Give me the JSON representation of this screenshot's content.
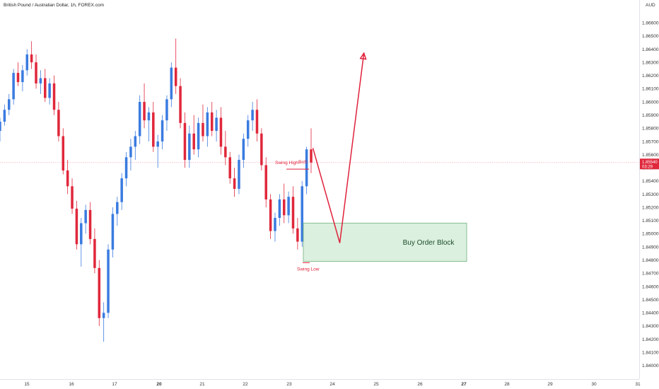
{
  "chart_data": {
    "type": "candlestick",
    "title": "British Pound / Australian Dollar, 1h, FOREX.com",
    "currency_label": "AUD",
    "y_ticks": [
      1.866,
      1.865,
      1.864,
      1.863,
      1.862,
      1.861,
      1.86,
      1.859,
      1.858,
      1.857,
      1.856,
      1.855,
      1.854,
      1.853,
      1.852,
      1.851,
      1.85,
      1.849,
      1.848,
      1.847,
      1.846,
      1.845,
      1.844,
      1.843,
      1.842,
      1.841,
      1.84
    ],
    "y_tick_labels": [
      "1.86600",
      "1.86500",
      "1.86400",
      "1.86300",
      "1.86200",
      "1.86100",
      "1.86000",
      "1.85900",
      "1.85800",
      "1.85700",
      "1.85600",
      "1.85500",
      "1.85400",
      "1.85300",
      "1.85200",
      "1.85100",
      "1.85000",
      "1.84900",
      "1.84800",
      "1.84700",
      "1.84600",
      "1.84500",
      "1.84400",
      "1.84300",
      "1.84200",
      "1.84100",
      "1.84000"
    ],
    "ylim": [
      1.8394,
      1.8673
    ],
    "x_ticks": [
      15,
      16,
      17,
      20,
      21,
      22,
      23,
      24,
      25,
      26,
      27,
      28,
      29,
      30,
      31
    ],
    "x_tick_labels": [
      "15",
      "16",
      "17",
      "20",
      "21",
      "22",
      "23",
      "24",
      "25",
      "26",
      "27",
      "28",
      "29",
      "30",
      "31"
    ],
    "bold_x_ticks": [
      "20",
      "27"
    ],
    "current_price": 1.8554,
    "current_price_label": "1.85540",
    "countdown_label": "03:29",
    "candles": [
      [
        1.8578,
        1.8588,
        1.857,
        1.8585
      ],
      [
        1.8585,
        1.8598,
        1.8582,
        1.8594
      ],
      [
        1.8594,
        1.8606,
        1.859,
        1.8602
      ],
      [
        1.8602,
        1.8625,
        1.8598,
        1.8622
      ],
      [
        1.8622,
        1.863,
        1.8612,
        1.8615
      ],
      [
        1.8615,
        1.8628,
        1.8608,
        1.8624
      ],
      [
        1.8624,
        1.864,
        1.862,
        1.8636
      ],
      [
        1.8636,
        1.8646,
        1.8625,
        1.863
      ],
      [
        1.863,
        1.8636,
        1.861,
        1.8614
      ],
      [
        1.8614,
        1.8624,
        1.8606,
        1.8618
      ],
      [
        1.8618,
        1.8625,
        1.86,
        1.8603
      ],
      [
        1.8603,
        1.8618,
        1.8598,
        1.8614
      ],
      [
        1.8614,
        1.862,
        1.859,
        1.8594
      ],
      [
        1.8594,
        1.86,
        1.857,
        1.8574
      ],
      [
        1.8574,
        1.858,
        1.8545,
        1.8548
      ],
      [
        1.8548,
        1.8556,
        1.853,
        1.8536
      ],
      [
        1.8536,
        1.8542,
        1.8515,
        1.8519
      ],
      [
        1.8519,
        1.8525,
        1.8488,
        1.8492
      ],
      [
        1.8492,
        1.8512,
        1.8475,
        1.8508
      ],
      [
        1.8508,
        1.8522,
        1.85,
        1.8518
      ],
      [
        1.8518,
        1.8524,
        1.8492,
        1.8496
      ],
      [
        1.8496,
        1.8504,
        1.847,
        1.8474
      ],
      [
        1.8474,
        1.848,
        1.843,
        1.8436
      ],
      [
        1.8436,
        1.8448,
        1.8418,
        1.844
      ],
      [
        1.844,
        1.8492,
        1.8436,
        1.8488
      ],
      [
        1.8488,
        1.852,
        1.8482,
        1.8515
      ],
      [
        1.8515,
        1.8528,
        1.8506,
        1.8524
      ],
      [
        1.8524,
        1.8546,
        1.8518,
        1.8542
      ],
      [
        1.8542,
        1.8562,
        1.8536,
        1.8558
      ],
      [
        1.8558,
        1.8572,
        1.8548,
        1.8566
      ],
      [
        1.8566,
        1.8578,
        1.8556,
        1.8574
      ],
      [
        1.8574,
        1.8605,
        1.8568,
        1.86
      ],
      [
        1.86,
        1.8614,
        1.858,
        1.8586
      ],
      [
        1.8586,
        1.8596,
        1.857,
        1.8592
      ],
      [
        1.8592,
        1.86,
        1.8562,
        1.8566
      ],
      [
        1.8566,
        1.8575,
        1.855,
        1.857
      ],
      [
        1.857,
        1.859,
        1.8564,
        1.8586
      ],
      [
        1.8586,
        1.8605,
        1.8578,
        1.8602
      ],
      [
        1.8602,
        1.863,
        1.8596,
        1.8626
      ],
      [
        1.8626,
        1.8648,
        1.8606,
        1.8612
      ],
      [
        1.8612,
        1.8618,
        1.858,
        1.8584
      ],
      [
        1.8584,
        1.8592,
        1.855,
        1.8556
      ],
      [
        1.8556,
        1.8582,
        1.855,
        1.8576
      ],
      [
        1.8576,
        1.859,
        1.856,
        1.8564
      ],
      [
        1.8564,
        1.8588,
        1.8558,
        1.8584
      ],
      [
        1.8584,
        1.8598,
        1.857,
        1.8574
      ],
      [
        1.8574,
        1.8596,
        1.8566,
        1.8592
      ],
      [
        1.8592,
        1.86,
        1.8574,
        1.8578
      ],
      [
        1.8578,
        1.8594,
        1.857,
        1.8588
      ],
      [
        1.8588,
        1.8596,
        1.856,
        1.8566
      ],
      [
        1.8566,
        1.8578,
        1.8552,
        1.8558
      ],
      [
        1.8558,
        1.8562,
        1.8538,
        1.8542
      ],
      [
        1.8542,
        1.855,
        1.8528,
        1.8534
      ],
      [
        1.8534,
        1.856,
        1.853,
        1.8556
      ],
      [
        1.8556,
        1.8576,
        1.855,
        1.8572
      ],
      [
        1.8572,
        1.859,
        1.8566,
        1.8586
      ],
      [
        1.8586,
        1.86,
        1.8578,
        1.8594
      ],
      [
        1.8594,
        1.8602,
        1.857,
        1.8576
      ],
      [
        1.8576,
        1.858,
        1.8548,
        1.8552
      ],
      [
        1.8552,
        1.8558,
        1.852,
        1.8526
      ],
      [
        1.8526,
        1.853,
        1.8496,
        1.8502
      ],
      [
        1.8502,
        1.8516,
        1.8494,
        1.8512
      ],
      [
        1.8512,
        1.853,
        1.8506,
        1.8526
      ],
      [
        1.8526,
        1.8538,
        1.8508,
        1.8514
      ],
      [
        1.8514,
        1.8532,
        1.8508,
        1.8528
      ],
      [
        1.8528,
        1.8536,
        1.85,
        1.8504
      ],
      [
        1.8504,
        1.8512,
        1.8488,
        1.8494
      ],
      [
        1.8494,
        1.854,
        1.849,
        1.8536
      ],
      [
        1.8536,
        1.8566,
        1.853,
        1.8564
      ],
      [
        1.8564,
        1.858,
        1.8546,
        1.8554
      ]
    ],
    "annotations": {
      "swing_high_label": "Swing High",
      "bos_label": "BoS",
      "swing_low_label": "Swing Low",
      "order_block_label": "Buy Order Block",
      "swing_high_price": 1.8549,
      "swing_low_price": 1.8478,
      "order_block_top": 1.8508,
      "order_block_bottom": 1.8479,
      "projection_path": [
        {
          "x": 23.55,
          "y": 1.8565
        },
        {
          "x": 24.17,
          "y": 1.8493
        },
        {
          "x": 24.72,
          "y": 1.8637
        }
      ]
    },
    "colors": {
      "up": "#3a7be0",
      "down": "#e0273b",
      "annotation": "#e0213b",
      "block_fill": "#d7eedb",
      "block_stroke": "#6fb07a",
      "price_line": "#f29aa2"
    }
  }
}
